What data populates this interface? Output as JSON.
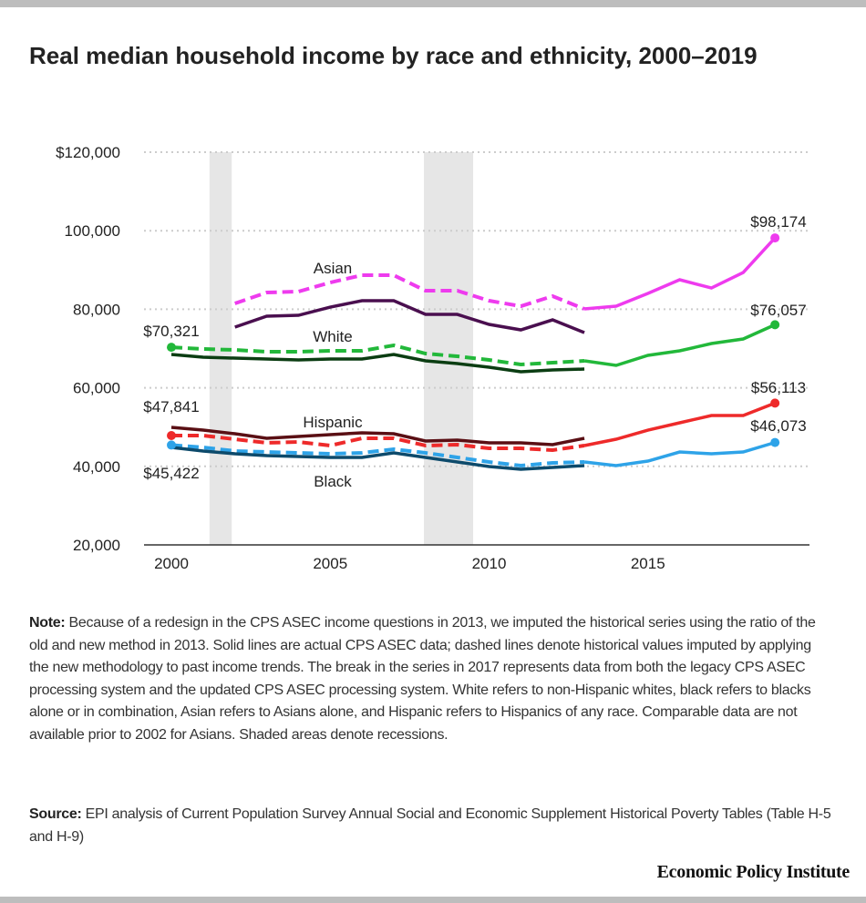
{
  "title": "Real median household income by race and ethnicity, 2000–2019",
  "note_label": "Note:",
  "note": "Because of a redesign in the CPS ASEC income questions in 2013, we imputed the historical series using the ratio of the old and new method in 2013. Solid lines are actual CPS ASEC data; dashed lines denote historical values imputed by applying the new methodology to past income trends. The break in the series in 2017 represents data from both the legacy CPS ASEC processing system and the updated CPS ASEC processing system. White refers to non-Hispanic whites, black refers to blacks alone or in combination, Asian refers to Asians alone, and Hispanic refers to Hispanics of any race. Comparable data are not available prior to 2002 for Asians. Shaded areas denote recessions.",
  "source_label": "Source:",
  "source": "EPI analysis of Current Population Survey Annual Social and Economic Supplement Historical Poverty Tables (Table H-5 and H-9)",
  "brand": "Economic Policy Institute",
  "chart_data": {
    "type": "line",
    "title": "Real median household income by race and ethnicity, 2000–2019",
    "xlim": [
      1999,
      2020
    ],
    "ylim": [
      20000,
      120000
    ],
    "xticks": [
      2000,
      2005,
      2010,
      2015
    ],
    "yticks": [
      20000,
      40000,
      60000,
      80000,
      100000,
      120000
    ],
    "ytick_labels": [
      "20,000",
      "40,000",
      "60,000",
      "80,000",
      "100,000",
      "$120,000"
    ],
    "grid": "horizontal dotted",
    "recessions": [
      [
        2001.2,
        2001.9
      ],
      [
        2007.95,
        2009.5
      ]
    ],
    "recession_color": "#e6e6e6",
    "series": [
      {
        "name": "Asian",
        "color": "#ee3bee",
        "color_actual": "#4a0f4f",
        "imputed": {
          "x": [
            2002,
            2003,
            2004,
            2005,
            2006,
            2007,
            2008,
            2009,
            2010,
            2011,
            2012,
            2013,
            2014,
            2015,
            2016,
            2017,
            2018,
            2019
          ],
          "y": [
            81480,
            84264,
            84496,
            86816,
            88672,
            88672,
            84728,
            84728,
            82176,
            80784,
            83336,
            80088,
            80784,
            84032,
            87512,
            85424,
            89368,
            98174
          ]
        },
        "actual": {
          "x": [
            2002,
            2003,
            2004,
            2005,
            2006,
            2007,
            2008,
            2009,
            2010,
            2011,
            2012,
            2013
          ],
          "y": [
            75448,
            78232,
            78464,
            80552,
            82176,
            82176,
            78696,
            78696,
            76144,
            74752,
            77304,
            74056
          ]
        },
        "end_label": "$98,174"
      },
      {
        "name": "White",
        "color": "#22b83a",
        "color_actual": "#0b3d12",
        "imputed": {
          "x": [
            2000,
            2001,
            2002,
            2003,
            2004,
            2005,
            2006,
            2007,
            2008,
            2009,
            2010,
            2011,
            2012,
            2013,
            2014,
            2015,
            2016,
            2017,
            2018,
            2019
          ],
          "y": [
            70321,
            69880,
            69648,
            69184,
            69184,
            69416,
            69416,
            70808,
            68720,
            68024,
            67096,
            65936,
            66400,
            66864,
            65704,
            68256,
            69416,
            71272,
            72432,
            76057
          ]
        },
        "actual": {
          "x": [
            2000,
            2001,
            2002,
            2003,
            2004,
            2005,
            2006,
            2007,
            2008,
            2009,
            2010,
            2011,
            2012,
            2013
          ],
          "y": [
            68488,
            67792,
            67560,
            67328,
            67096,
            67328,
            67328,
            68488,
            66864,
            66168,
            65240,
            64080,
            64544,
            64776
          ]
        },
        "start_label": "$70,321",
        "end_label": "$76,057"
      },
      {
        "name": "Hispanic",
        "color": "#ee2a2a",
        "color_actual": "#5a0f14",
        "imputed": {
          "x": [
            2000,
            2001,
            2002,
            2003,
            2004,
            2005,
            2006,
            2007,
            2008,
            2009,
            2010,
            2011,
            2012,
            2013,
            2014,
            2015,
            2016,
            2017,
            2018,
            2019
          ],
          "y": [
            47841,
            47840,
            46912,
            45984,
            46216,
            45288,
            47144,
            47144,
            45288,
            45520,
            44592,
            44592,
            44128,
            45288,
            46912,
            49232,
            51088,
            52944,
            52944,
            56113
          ]
        },
        "actual": {
          "x": [
            2000,
            2001,
            2002,
            2003,
            2004,
            2005,
            2006,
            2007,
            2008,
            2009,
            2010,
            2011,
            2012,
            2013
          ],
          "y": [
            49928,
            49232,
            48304,
            47144,
            47608,
            48072,
            48536,
            48304,
            46448,
            46680,
            45984,
            45984,
            45520,
            47144
          ]
        },
        "start_label": "$47,841",
        "end_label": "$56,113"
      },
      {
        "name": "Black",
        "color": "#2ea3e8",
        "color_actual": "#0d4a6b",
        "imputed": {
          "x": [
            2000,
            2001,
            2002,
            2003,
            2004,
            2005,
            2006,
            2007,
            2008,
            2009,
            2010,
            2011,
            2012,
            2013,
            2014,
            2015,
            2016,
            2017,
            2018,
            2019
          ],
          "y": [
            45422,
            44824,
            43896,
            43664,
            43432,
            43200,
            43432,
            44360,
            43432,
            42272,
            41112,
            40184,
            40880,
            41112,
            40184,
            41344,
            43664,
            43200,
            43664,
            46073
          ]
        },
        "actual": {
          "x": [
            2000,
            2001,
            2002,
            2003,
            2004,
            2005,
            2006,
            2007,
            2008,
            2009,
            2010,
            2011,
            2012,
            2013
          ],
          "y": [
            44824,
            43896,
            43200,
            42736,
            42504,
            42272,
            42272,
            43432,
            42272,
            41112,
            39952,
            39256,
            39720,
            40184
          ]
        },
        "start_label": "$45,422",
        "end_label": "$46,073"
      }
    ]
  }
}
